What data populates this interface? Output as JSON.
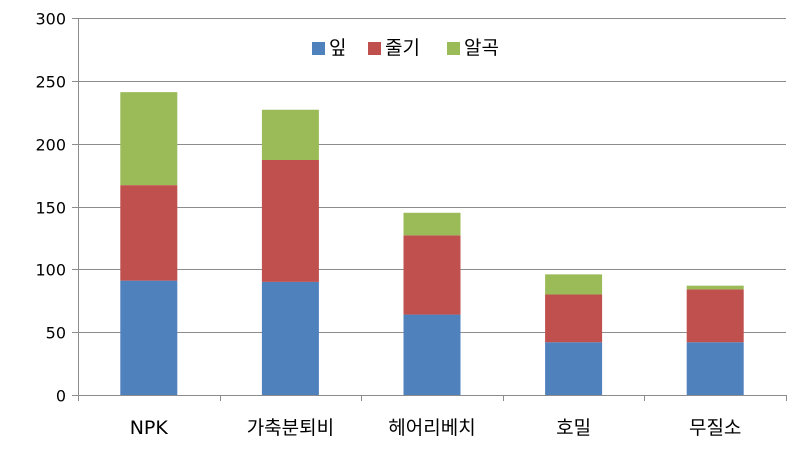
{
  "chart_data": {
    "type": "bar",
    "stacked": true,
    "categories": [
      "NPK",
      "가축분퇴비",
      "헤어리베치",
      "호밀",
      "무질소"
    ],
    "series": [
      {
        "name": "잎",
        "color": "#4F81BD",
        "values": [
          91,
          90,
          64,
          42,
          42
        ]
      },
      {
        "name": "줄기",
        "color": "#C0504D",
        "values": [
          76,
          97,
          63,
          38,
          42
        ]
      },
      {
        "name": "알곡",
        "color": "#9BBB59",
        "values": [
          74,
          40,
          18,
          16,
          3
        ]
      }
    ],
    "ylim": [
      0,
      300
    ],
    "yticks": [
      0,
      50,
      100,
      150,
      200,
      250,
      300
    ],
    "grid": true,
    "legend_position": "top-center",
    "title": "",
    "xlabel": "",
    "ylabel": ""
  }
}
